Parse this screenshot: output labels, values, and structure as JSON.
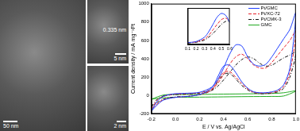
{
  "figure": {
    "tem_labels": {
      "lattice": "0.335 nm",
      "scale_zoom": "5 nm",
      "scale_main": "50 nm",
      "scale_pores": "2 nm"
    }
  },
  "chart_data": [
    {
      "type": "line",
      "x_label": "E / V vs. Ag/AgCl",
      "y_label": "Current density / mA mg⁻¹Pt",
      "xlim": [
        -0.2,
        1.0
      ],
      "xticks": [
        -0.2,
        {
          "value": 0,
          "label": "0.0"
        },
        0.2,
        0.4,
        0.6,
        0.8,
        {
          "value": 1,
          "label": "1.0"
        }
      ],
      "ylim": [
        -200,
        1000
      ],
      "yticks": [
        -200,
        0,
        200,
        400,
        600,
        800,
        1000
      ],
      "grid": false,
      "legend": "upper right",
      "series": [
        {
          "name": "Pt/GMC",
          "color": "#1f3fff",
          "line_style": "solid",
          "x": [
            -0.2,
            -0.15,
            -0.1,
            -0.05,
            0,
            0.1,
            0.2,
            0.3,
            0.35,
            0.4,
            0.45,
            0.5,
            0.55,
            0.6,
            0.65,
            0.7,
            0.75,
            0.8,
            0.85,
            0.9,
            0.95,
            1.0,
            0.95,
            0.9,
            0.85,
            0.8,
            0.75,
            0.7,
            0.65,
            0.6,
            0.55,
            0.5,
            0.45,
            0.4,
            0.35,
            0.3,
            0.2,
            0.1,
            0,
            -0.1,
            -0.15,
            -0.2
          ],
          "values": [
            -170,
            -60,
            -10,
            10,
            20,
            25,
            35,
            90,
            170,
            300,
            450,
            550,
            540,
            420,
            340,
            320,
            340,
            420,
            520,
            620,
            720,
            900,
            300,
            120,
            60,
            40,
            30,
            30,
            40,
            80,
            150,
            250,
            330,
            320,
            200,
            80,
            10,
            -10,
            -20,
            -50,
            -100,
            -170
          ]
        },
        {
          "name": "Pt/XC-72",
          "color": "#e8202a",
          "line_style": "dashed",
          "x": [
            -0.2,
            -0.15,
            -0.1,
            -0.05,
            0,
            0.1,
            0.2,
            0.3,
            0.35,
            0.4,
            0.45,
            0.5,
            0.55,
            0.6,
            0.65,
            0.7,
            0.75,
            0.8,
            0.85,
            0.9,
            0.95,
            1.0,
            0.95,
            0.9,
            0.85,
            0.8,
            0.75,
            0.7,
            0.65,
            0.6,
            0.55,
            0.5,
            0.45,
            0.4,
            0.35,
            0.3,
            0.2,
            0.1,
            0,
            -0.1,
            -0.15,
            -0.2
          ],
          "values": [
            -150,
            -50,
            -10,
            5,
            15,
            20,
            30,
            70,
            130,
            230,
            340,
            420,
            450,
            400,
            330,
            300,
            300,
            360,
            440,
            520,
            600,
            700,
            250,
            100,
            50,
            30,
            25,
            25,
            35,
            70,
            130,
            200,
            260,
            250,
            160,
            60,
            10,
            -10,
            -20,
            -45,
            -90,
            -150
          ]
        },
        {
          "name": "Pt/CMK-3",
          "color": "#111111",
          "line_style": "dashdot",
          "x": [
            -0.2,
            -0.15,
            -0.1,
            -0.05,
            0,
            0.1,
            0.2,
            0.3,
            0.35,
            0.4,
            0.45,
            0.5,
            0.55,
            0.6,
            0.65,
            0.7,
            0.75,
            0.8,
            0.85,
            0.9,
            0.95,
            1.0,
            0.95,
            0.9,
            0.85,
            0.8,
            0.75,
            0.7,
            0.65,
            0.6,
            0.55,
            0.5,
            0.45,
            0.4,
            0.35,
            0.3,
            0.2,
            0.1,
            0,
            -0.1,
            -0.15,
            -0.2
          ],
          "values": [
            -120,
            -40,
            -5,
            5,
            10,
            15,
            25,
            55,
            100,
            170,
            250,
            330,
            390,
            420,
            400,
            350,
            320,
            330,
            370,
            410,
            440,
            470,
            200,
            80,
            40,
            25,
            20,
            20,
            30,
            60,
            110,
            180,
            240,
            230,
            150,
            55,
            10,
            -10,
            -15,
            -40,
            -75,
            -120
          ]
        },
        {
          "name": "GMC",
          "color": "#22aa22",
          "line_style": "solid",
          "x": [
            -0.2,
            -0.1,
            0,
            0.2,
            0.4,
            0.6,
            0.8,
            0.9,
            1.0,
            0.9,
            0.8,
            0.6,
            0.4,
            0.2,
            0,
            -0.1,
            -0.2
          ],
          "values": [
            -40,
            5,
            10,
            12,
            15,
            18,
            22,
            30,
            50,
            -5,
            -10,
            -12,
            -15,
            -18,
            -20,
            -25,
            -40
          ]
        }
      ]
    },
    {
      "type": "line",
      "xlim": [
        0.1,
        0.6
      ],
      "xticks": [
        0.1,
        0.2,
        0.3,
        0.4,
        0.5,
        0.6
      ],
      "ylim": [
        0,
        1
      ],
      "grid": false,
      "tick_labels": "x",
      "series": [
        {
          "name": "Pt/GMC",
          "color": "#1f3fff",
          "line_style": "solid",
          "x": [
            0.1,
            0.2,
            0.3,
            0.35,
            0.4,
            0.45,
            0.5,
            0.55,
            0.6
          ],
          "values": [
            0.05,
            0.08,
            0.2,
            0.35,
            0.55,
            0.75,
            0.85,
            0.8,
            0.6
          ]
        },
        {
          "name": "Pt/XC-72",
          "color": "#e8202a",
          "line_style": "dashed",
          "x": [
            0.1,
            0.2,
            0.3,
            0.35,
            0.4,
            0.45,
            0.5,
            0.55,
            0.6
          ],
          "values": [
            0.05,
            0.07,
            0.15,
            0.25,
            0.4,
            0.55,
            0.68,
            0.72,
            0.65
          ]
        },
        {
          "name": "Pt/CMK-3",
          "color": "#111111",
          "line_style": "dashdot",
          "x": [
            0.1,
            0.2,
            0.3,
            0.35,
            0.4,
            0.45,
            0.5,
            0.55,
            0.6
          ],
          "values": [
            0.04,
            0.06,
            0.12,
            0.2,
            0.3,
            0.42,
            0.55,
            0.63,
            0.66
          ]
        }
      ]
    }
  ]
}
